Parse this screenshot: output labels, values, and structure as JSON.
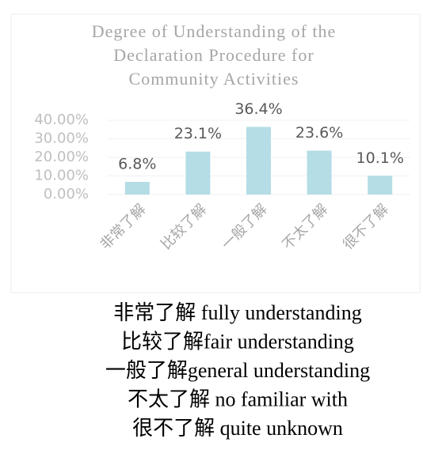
{
  "chart_data": {
    "type": "bar",
    "title": [
      "Degree of Understanding of the",
      "Declaration Procedure for",
      "Community Activities"
    ],
    "categories": [
      "非常了解",
      "比较了解",
      "一般了解",
      "不太了解",
      "很不了解"
    ],
    "values": [
      6.8,
      23.1,
      36.4,
      23.6,
      10.1
    ],
    "value_labels": [
      "6.8%",
      "23.1%",
      "36.4%",
      "23.6%",
      "10.1%"
    ],
    "color": "#b4dde6",
    "ylim": [
      0,
      40
    ],
    "yticks": [
      {
        "value": 0,
        "label": "0.00%"
      },
      {
        "value": 10,
        "label": "10.00%"
      },
      {
        "value": 20,
        "label": "20.00%"
      },
      {
        "value": 30,
        "label": "30.00%"
      },
      {
        "value": 40,
        "label": "40.00%"
      }
    ],
    "grid": true
  },
  "notes": [
    "非常了解  fully understanding",
    "比较了解fair understanding",
    "一般了解general understanding",
    "不太了解  no familiar with",
    "很不了解  quite unknown"
  ]
}
